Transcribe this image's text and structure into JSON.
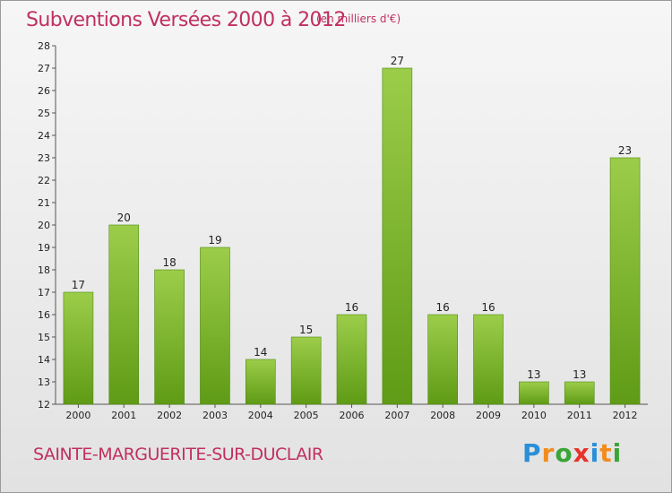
{
  "header": {
    "title": "Subventions Versées 2000 à 2012",
    "unit_note": "(en milliers d'€)"
  },
  "footer": {
    "commune": "SAINTE-MARGUERITE-SUR-DUCLAIR",
    "logo_letters": [
      "P",
      "r",
      "o",
      "x",
      "i",
      "t",
      "i"
    ],
    "logo_colors": [
      "#2a8fd8",
      "#f28c1e",
      "#3aa537",
      "#e8322c",
      "#2a8fd8",
      "#f28c1e",
      "#3aa537"
    ]
  },
  "colors": {
    "bar_light": "#9ccd4a",
    "bar_dark": "#5f9b16",
    "title": "#c0305f"
  },
  "chart_data": {
    "type": "bar",
    "categories": [
      "2000",
      "2001",
      "2002",
      "2003",
      "2004",
      "2005",
      "2006",
      "2007",
      "2008",
      "2009",
      "2010",
      "2011",
      "2012"
    ],
    "values": [
      17,
      20,
      18,
      19,
      14,
      15,
      16,
      27,
      16,
      16,
      13,
      13,
      23
    ],
    "ylim": [
      12,
      28
    ],
    "yticks": [
      12,
      13,
      14,
      15,
      16,
      17,
      18,
      19,
      20,
      21,
      22,
      23,
      24,
      25,
      26,
      27,
      28
    ],
    "grid": false,
    "data_labels": true
  }
}
